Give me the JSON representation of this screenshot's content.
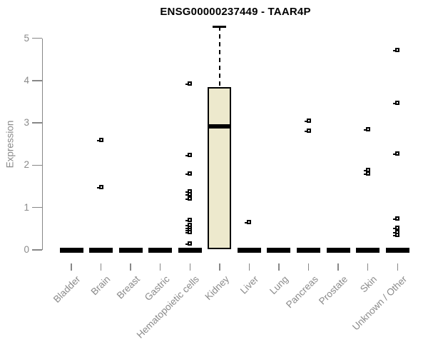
{
  "chart_data": {
    "type": "boxplot",
    "title": "ENSG00000237449 - TAAR4P",
    "ylabel": "Expression",
    "xlabel": "",
    "ylim": [
      0,
      5.4
    ],
    "yticks": [
      0,
      1,
      2,
      3,
      4,
      5
    ],
    "grid": false,
    "legend": "none",
    "categories": [
      "Bladder",
      "Brain",
      "Breast",
      "Gastric",
      "Hematopoietic cells",
      "Kidney",
      "Liver",
      "Lung",
      "Pancreas",
      "Prostate",
      "Skin",
      "Unknown / Other"
    ],
    "boxes": [
      {
        "category": "Bladder",
        "median": 0,
        "q1": 0,
        "q3": 0,
        "outliers": []
      },
      {
        "category": "Brain",
        "median": 0,
        "q1": 0,
        "q3": 0,
        "outliers": [
          2.6,
          1.48
        ]
      },
      {
        "category": "Breast",
        "median": 0,
        "q1": 0,
        "q3": 0,
        "outliers": []
      },
      {
        "category": "Gastric",
        "median": 0,
        "q1": 0,
        "q3": 0,
        "outliers": []
      },
      {
        "category": "Hematopoietic cells",
        "median": 0,
        "q1": 0,
        "q3": 0,
        "outliers": [
          3.93,
          2.25,
          1.8,
          1.39,
          1.31,
          1.22,
          0.71,
          0.59,
          0.53,
          0.48,
          0.42,
          0.15
        ]
      },
      {
        "category": "Kidney",
        "median": 2.92,
        "q1": 0.02,
        "q3": 3.85,
        "whisker_high": 5.27,
        "outliers": []
      },
      {
        "category": "Liver",
        "median": 0,
        "q1": 0,
        "q3": 0,
        "outliers": [
          0.66
        ]
      },
      {
        "category": "Lung",
        "median": 0,
        "q1": 0,
        "q3": 0,
        "outliers": []
      },
      {
        "category": "Pancreas",
        "median": 0,
        "q1": 0,
        "q3": 0,
        "outliers": [
          3.06,
          2.81
        ]
      },
      {
        "category": "Prostate",
        "median": 0,
        "q1": 0,
        "q3": 0,
        "outliers": []
      },
      {
        "category": "Skin",
        "median": 0,
        "q1": 0,
        "q3": 0,
        "outliers": [
          2.85,
          1.89,
          1.81
        ]
      },
      {
        "category": "Unknown / Other",
        "median": 0,
        "q1": 0,
        "q3": 0,
        "outliers": [
          4.72,
          3.47,
          2.28,
          0.74,
          0.52,
          0.43,
          0.35
        ]
      }
    ],
    "colors": {
      "box_fill": "#EDE9CD",
      "box_border": "#000000",
      "median": "#000000",
      "axis": "#878787",
      "tick_label": "#8A8A8A",
      "title": "#000000",
      "background": "#FFFFFF"
    }
  }
}
